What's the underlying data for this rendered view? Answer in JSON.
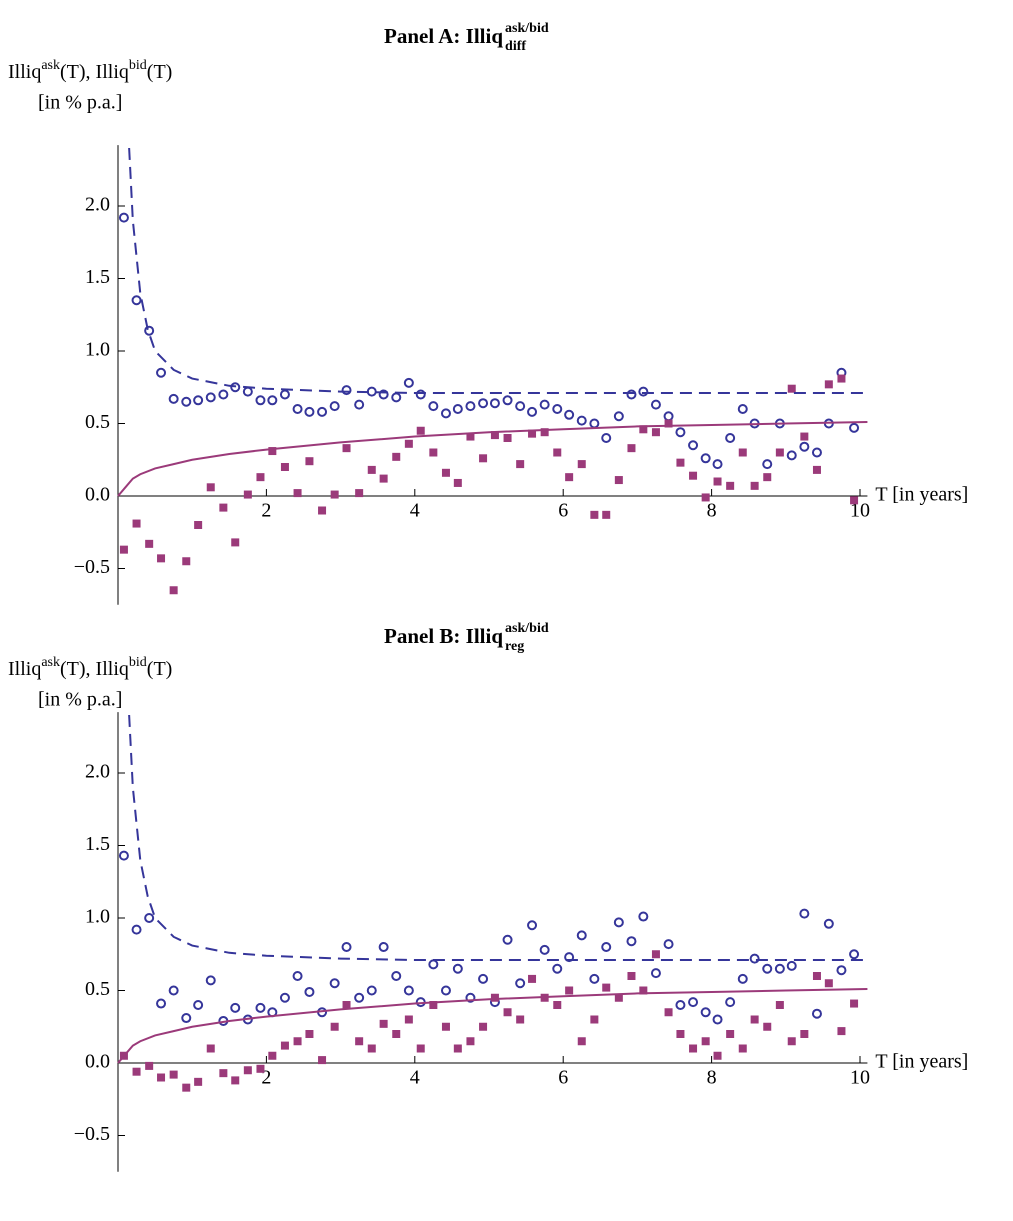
{
  "chart_data": [
    {
      "type": "scatter",
      "title": "Panel A: Illiq",
      "title_sup": "ask/bid",
      "title_sub": "diff",
      "ylabel_parts": [
        {
          "text": "Illiq"
        },
        {
          "text": "ask",
          "sup": true
        },
        {
          "text": "(T), Illiq"
        },
        {
          "text": "bid",
          "sup": true
        },
        {
          "text": "(T)"
        }
      ],
      "ylabel_unit": "[in % p.a.]",
      "xlabel": "T [in years]",
      "xlim": [
        0,
        10.1
      ],
      "ylim": [
        -0.75,
        2.42
      ],
      "xticks": [
        2,
        4,
        6,
        8,
        10
      ],
      "yticks": [
        {
          "value": -0.5,
          "label": "−0.5"
        },
        {
          "value": 0,
          "label": "0.0"
        },
        0.5,
        {
          "value": 1,
          "label": "1.0"
        },
        1.5,
        {
          "value": 2,
          "label": "2.0"
        }
      ],
      "x": [
        0.08,
        0.25,
        0.42,
        0.58,
        0.75,
        0.92,
        1.08,
        1.25,
        1.42,
        1.58,
        1.75,
        1.92,
        2.08,
        2.25,
        2.42,
        2.58,
        2.75,
        2.92,
        3.08,
        3.25,
        3.42,
        3.58,
        3.75,
        3.92,
        4.08,
        4.25,
        4.42,
        4.58,
        4.75,
        4.92,
        5.08,
        5.25,
        5.42,
        5.58,
        5.75,
        5.92,
        6.08,
        6.25,
        6.42,
        6.58,
        6.75,
        6.92,
        7.08,
        7.25,
        7.42,
        7.58,
        7.75,
        7.92,
        8.08,
        8.25,
        8.42,
        8.58,
        8.75,
        8.92,
        9.08,
        9.25,
        9.42,
        9.58,
        9.75,
        9.92
      ],
      "series": [
        {
          "type": "scatter",
          "marker": "circle",
          "color": "#35359a",
          "values": [
            1.92,
            1.35,
            1.14,
            0.85,
            0.67,
            0.65,
            0.66,
            0.68,
            0.7,
            0.75,
            0.72,
            0.66,
            0.66,
            0.7,
            0.6,
            0.58,
            0.58,
            0.62,
            0.73,
            0.63,
            0.72,
            0.7,
            0.68,
            0.78,
            0.7,
            0.62,
            0.57,
            0.6,
            0.62,
            0.64,
            0.64,
            0.66,
            0.62,
            0.58,
            0.63,
            0.6,
            0.56,
            0.52,
            0.5,
            0.4,
            0.55,
            0.7,
            0.72,
            0.63,
            0.55,
            0.44,
            0.35,
            0.26,
            0.22,
            0.4,
            0.6,
            0.5,
            0.22,
            0.5,
            0.28,
            0.34,
            0.3,
            0.5,
            0.85,
            0.47
          ]
        },
        {
          "type": "scatter",
          "marker": "square",
          "color": "#9b3a7a",
          "values": [
            -0.37,
            -0.19,
            -0.33,
            -0.43,
            -0.65,
            -0.45,
            -0.2,
            0.06,
            -0.08,
            -0.32,
            0.01,
            0.13,
            0.31,
            0.2,
            0.02,
            0.24,
            -0.1,
            0.01,
            0.33,
            0.02,
            0.18,
            0.12,
            0.27,
            0.36,
            0.45,
            0.3,
            0.16,
            0.09,
            0.41,
            0.26,
            0.42,
            0.4,
            0.22,
            0.43,
            0.44,
            0.3,
            0.13,
            0.22,
            -0.13,
            -0.13,
            0.11,
            0.33,
            0.46,
            0.44,
            0.5,
            0.23,
            0.14,
            -0.01,
            0.1,
            0.07,
            0.3,
            0.07,
            0.13,
            0.3,
            0.74,
            0.41,
            0.18,
            0.77,
            0.81,
            -0.03
          ]
        },
        {
          "type": "line",
          "style": "dashed",
          "color": "#35359a",
          "x": [
            0.15,
            0.2,
            0.3,
            0.4,
            0.5,
            0.75,
            1,
            1.5,
            2,
            3,
            4,
            5,
            6,
            7,
            8,
            9,
            10.1
          ],
          "values": [
            2.4,
            1.9,
            1.4,
            1.15,
            1.0,
            0.87,
            0.81,
            0.76,
            0.74,
            0.72,
            0.71,
            0.71,
            0.71,
            0.71,
            0.71,
            0.71,
            0.71
          ]
        },
        {
          "type": "line",
          "style": "solid",
          "color": "#9b3a7a",
          "x": [
            0,
            0.1,
            0.2,
            0.3,
            0.5,
            0.75,
            1,
            1.5,
            2,
            3,
            4,
            5,
            6,
            7,
            8,
            9,
            10.1
          ],
          "values": [
            0,
            0.06,
            0.12,
            0.15,
            0.19,
            0.22,
            0.25,
            0.29,
            0.32,
            0.37,
            0.41,
            0.44,
            0.46,
            0.48,
            0.49,
            0.5,
            0.51
          ]
        }
      ]
    },
    {
      "type": "scatter",
      "title": "Panel B: Illiq",
      "title_sup": "ask/bid",
      "title_sub": "reg",
      "ylabel_parts": [
        {
          "text": "Illiq"
        },
        {
          "text": "ask",
          "sup": true
        },
        {
          "text": "(T), Illiq"
        },
        {
          "text": "bid",
          "sup": true
        },
        {
          "text": "(T)"
        }
      ],
      "ylabel_unit": "[in % p.a.]",
      "xlabel": "T [in years]",
      "xlim": [
        0,
        10.1
      ],
      "ylim": [
        -0.75,
        2.42
      ],
      "xticks": [
        2,
        4,
        6,
        8,
        10
      ],
      "yticks": [
        {
          "value": -0.5,
          "label": "−0.5"
        },
        {
          "value": 0,
          "label": "0.0"
        },
        0.5,
        {
          "value": 1,
          "label": "1.0"
        },
        1.5,
        {
          "value": 2,
          "label": "2.0"
        }
      ],
      "x": [
        0.08,
        0.25,
        0.42,
        0.58,
        0.75,
        0.92,
        1.08,
        1.25,
        1.42,
        1.58,
        1.75,
        1.92,
        2.08,
        2.25,
        2.42,
        2.58,
        2.75,
        2.92,
        3.08,
        3.25,
        3.42,
        3.58,
        3.75,
        3.92,
        4.08,
        4.25,
        4.42,
        4.58,
        4.75,
        4.92,
        5.08,
        5.25,
        5.42,
        5.58,
        5.75,
        5.92,
        6.08,
        6.25,
        6.42,
        6.58,
        6.75,
        6.92,
        7.08,
        7.25,
        7.42,
        7.58,
        7.75,
        7.92,
        8.08,
        8.25,
        8.42,
        8.58,
        8.75,
        8.92,
        9.08,
        9.25,
        9.42,
        9.58,
        9.75,
        9.92
      ],
      "series": [
        {
          "type": "scatter",
          "marker": "circle",
          "color": "#35359a",
          "values": [
            1.43,
            0.92,
            1.0,
            0.41,
            0.5,
            0.31,
            0.4,
            0.57,
            0.29,
            0.38,
            0.3,
            0.38,
            0.35,
            0.45,
            0.6,
            0.49,
            0.35,
            0.55,
            0.8,
            0.45,
            0.5,
            0.8,
            0.6,
            0.5,
            0.42,
            0.68,
            0.5,
            0.65,
            0.45,
            0.58,
            0.42,
            0.85,
            0.55,
            0.95,
            0.78,
            0.65,
            0.73,
            0.88,
            0.58,
            0.8,
            0.97,
            0.84,
            1.01,
            0.62,
            0.82,
            0.4,
            0.42,
            0.35,
            0.3,
            0.42,
            0.58,
            0.72,
            0.65,
            0.65,
            0.67,
            1.03,
            0.34,
            0.96,
            0.64,
            0.75
          ]
        },
        {
          "type": "scatter",
          "marker": "square",
          "color": "#9b3a7a",
          "values": [
            0.05,
            -0.06,
            -0.02,
            -0.1,
            -0.08,
            -0.17,
            -0.13,
            0.1,
            -0.07,
            -0.12,
            -0.05,
            -0.04,
            0.05,
            0.12,
            0.15,
            0.2,
            0.02,
            0.25,
            0.4,
            0.15,
            0.1,
            0.27,
            0.2,
            0.3,
            0.1,
            0.4,
            0.25,
            0.1,
            0.15,
            0.25,
            0.45,
            0.35,
            0.3,
            0.58,
            0.45,
            0.4,
            0.5,
            0.15,
            0.3,
            0.52,
            0.45,
            0.6,
            0.5,
            0.75,
            0.35,
            0.2,
            0.1,
            0.15,
            0.05,
            0.2,
            0.1,
            0.3,
            0.25,
            0.4,
            0.15,
            0.2,
            0.6,
            0.55,
            0.22,
            0.41
          ]
        },
        {
          "type": "line",
          "style": "dashed",
          "color": "#35359a",
          "x": [
            0.15,
            0.2,
            0.3,
            0.4,
            0.5,
            0.75,
            1,
            1.5,
            2,
            3,
            4,
            5,
            6,
            7,
            8,
            9,
            10.1
          ],
          "values": [
            2.4,
            1.9,
            1.4,
            1.15,
            1.0,
            0.87,
            0.81,
            0.76,
            0.74,
            0.72,
            0.71,
            0.71,
            0.71,
            0.71,
            0.71,
            0.71,
            0.71
          ]
        },
        {
          "type": "line",
          "style": "solid",
          "color": "#9b3a7a",
          "x": [
            0,
            0.1,
            0.2,
            0.3,
            0.5,
            0.75,
            1,
            1.5,
            2,
            3,
            4,
            5,
            6,
            7,
            8,
            9,
            10.1
          ],
          "values": [
            0,
            0.06,
            0.12,
            0.15,
            0.19,
            0.22,
            0.25,
            0.29,
            0.32,
            0.37,
            0.41,
            0.44,
            0.46,
            0.48,
            0.49,
            0.5,
            0.51
          ]
        }
      ]
    }
  ]
}
